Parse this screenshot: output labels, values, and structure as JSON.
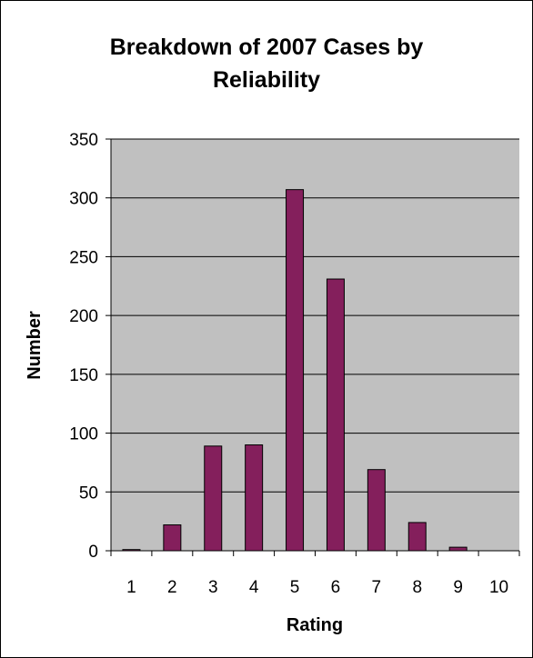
{
  "chart_data": {
    "type": "bar",
    "title_lines": [
      "Breakdown of 2007 Cases by",
      "Reliability"
    ],
    "xlabel": "Rating",
    "ylabel": "Number",
    "categories": [
      "1",
      "2",
      "3",
      "4",
      "5",
      "6",
      "7",
      "8",
      "9",
      "10"
    ],
    "values": [
      1,
      22,
      89,
      90,
      307,
      231,
      69,
      24,
      3,
      0
    ],
    "ylim": [
      0,
      350
    ],
    "yticks": [
      0,
      50,
      100,
      150,
      200,
      250,
      300,
      350
    ],
    "grid": true,
    "legend": "none",
    "colors": {
      "bar": "#841F5C",
      "plot_background": "#C0C0C0",
      "gridline": "#000000"
    }
  }
}
